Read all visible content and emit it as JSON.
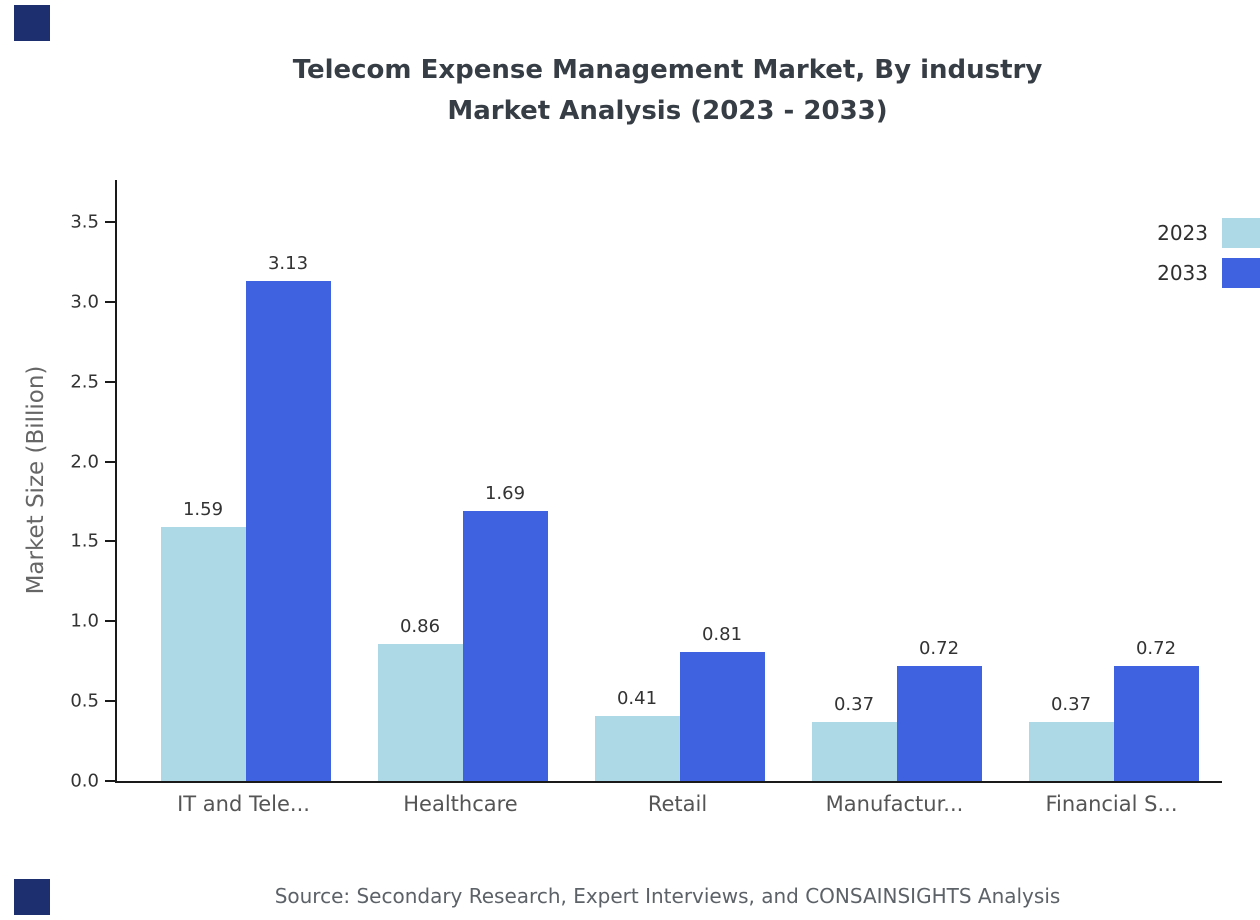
{
  "title": {
    "line1": "Telecom Expense Management Market, By industry",
    "line2": "Market Analysis (2023 - 2033)"
  },
  "source": "Source: Secondary Research, Expert Interviews, and CONSAINSIGHTS Analysis",
  "decor": {
    "corner_color": "#1e2f6f"
  },
  "chart_data": {
    "type": "bar",
    "title": "Telecom Expense Management Market, By industry Market Analysis (2023 - 2033)",
    "categories": [
      "IT and Tele...",
      "Healthcare",
      "Retail",
      "Manufactur...",
      "Financial S..."
    ],
    "series": [
      {
        "name": "2023",
        "color": "#add8e6",
        "values": [
          1.59,
          0.86,
          0.41,
          0.37,
          0.37
        ]
      },
      {
        "name": "2033",
        "color": "#3f63e0",
        "values": [
          3.13,
          1.69,
          0.81,
          0.72,
          0.72
        ]
      }
    ],
    "xlabel": "",
    "ylabel": "Market Size (Billion)",
    "ylim": [
      0,
      3.5
    ],
    "yticks": [
      0.0,
      0.5,
      1.0,
      1.5,
      2.0,
      2.5,
      3.0,
      3.5
    ],
    "grid": false,
    "legend_position": "top-right"
  }
}
